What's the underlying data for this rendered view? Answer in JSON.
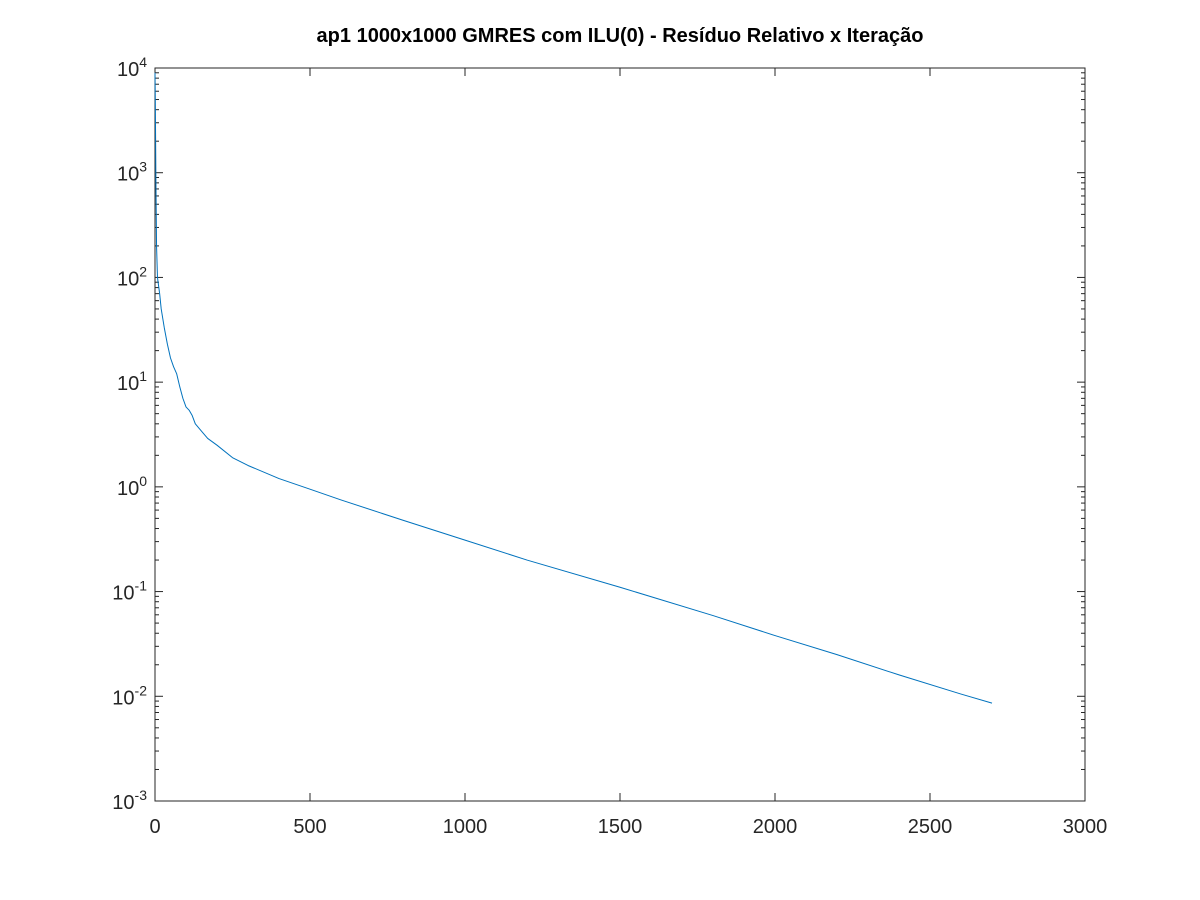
{
  "chart_data": {
    "type": "line",
    "title": "ap1 1000x1000 GMRES com ILU(0) - Resíduo Relativo x Iteração",
    "xlabel": "",
    "ylabel": "",
    "xlim": [
      0,
      3000
    ],
    "ylim": [
      0.001,
      10000
    ],
    "yscale": "log",
    "grid": false,
    "x_ticks": [
      0,
      500,
      1000,
      1500,
      2000,
      2500,
      3000
    ],
    "x_tick_labels": [
      "0",
      "500",
      "1000",
      "1500",
      "2000",
      "2500",
      "3000"
    ],
    "y_ticks": [
      0.001,
      0.01,
      0.1,
      1,
      10,
      100,
      1000,
      10000
    ],
    "y_tick_labels": [
      {
        "base": "10",
        "exp": "-3"
      },
      {
        "base": "10",
        "exp": "-2"
      },
      {
        "base": "10",
        "exp": "-1"
      },
      {
        "base": "10",
        "exp": "0"
      },
      {
        "base": "10",
        "exp": "1"
      },
      {
        "base": "10",
        "exp": "2"
      },
      {
        "base": "10",
        "exp": "3"
      },
      {
        "base": "10",
        "exp": "4"
      }
    ],
    "series": [
      {
        "color": "#0072bd",
        "x": [
          0,
          1,
          2,
          3,
          5,
          8,
          10,
          15,
          20,
          30,
          40,
          50,
          60,
          70,
          80,
          90,
          100,
          110,
          120,
          130,
          150,
          170,
          200,
          250,
          300,
          400,
          500,
          600,
          800,
          1000,
          1200,
          1500,
          1800,
          2000,
          2200,
          2400,
          2600,
          2700
        ],
        "y": [
          9000,
          5000,
          2000,
          800,
          200,
          100,
          90,
          70,
          50,
          33,
          23,
          17,
          14,
          12,
          9,
          7,
          5.8,
          5.4,
          4.8,
          4.0,
          3.4,
          2.9,
          2.5,
          1.9,
          1.6,
          1.2,
          0.95,
          0.75,
          0.48,
          0.31,
          0.2,
          0.11,
          0.059,
          0.038,
          0.025,
          0.016,
          0.0105,
          0.0086
        ]
      }
    ]
  }
}
